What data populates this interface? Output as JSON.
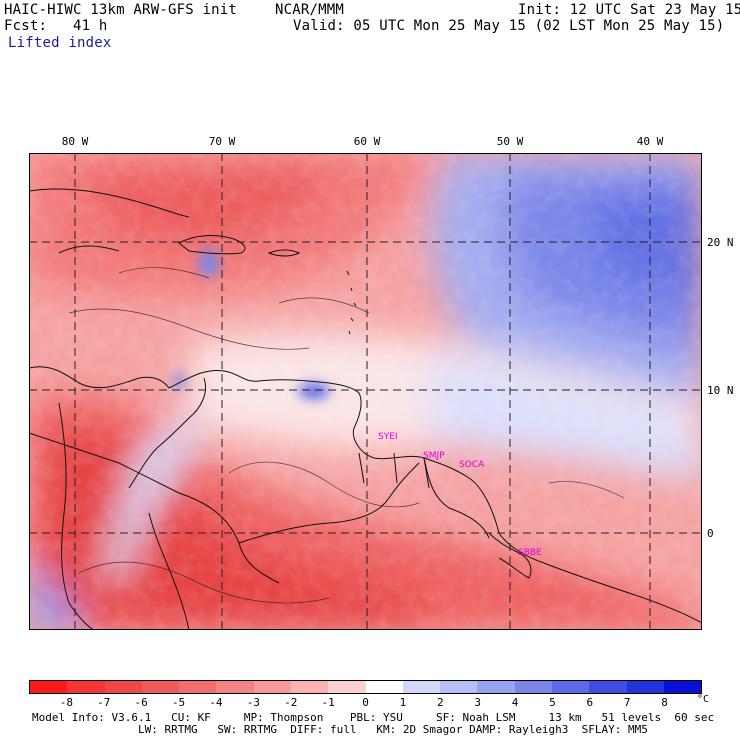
{
  "header": {
    "model_title": "HAIC-HIWC 13km ARW-GFS init",
    "org": "NCAR/MMM",
    "init": "Init: 12 UTC Sat 23 May 15",
    "fcst": "Fcst:   41 h",
    "valid": "Valid: 05 UTC Mon 25 May 15 (02 LST Mon 25 May 15)",
    "field": "Lifted index"
  },
  "map": {
    "longitude_labels": [
      "80 W",
      "70 W",
      "60 W",
      "50 W",
      "40 W"
    ],
    "latitude_labels": [
      "20 N",
      "10 N",
      "0"
    ],
    "stations": [
      "SYEI",
      "SMJP",
      "SOCA",
      "SBBE"
    ]
  },
  "colorbar": {
    "tick_labels": [
      "-8",
      "-7",
      "-6",
      "-5",
      "-4",
      "-3",
      "-2",
      "-1",
      "0",
      "1",
      "2",
      "3",
      "4",
      "5",
      "6",
      "7",
      "8"
    ],
    "unit": "°C",
    "colors": [
      "#ff1a1a",
      "#f53535",
      "#f04848",
      "#ef5b5b",
      "#f06e6e",
      "#f48383",
      "#f79a9a",
      "#fab3b3",
      "#fdd0d0",
      "#ffffff",
      "#d3d8fa",
      "#b6bff5",
      "#98a3f0",
      "#7a86ea",
      "#5d6be6",
      "#3f4ee0",
      "#2433dc",
      "#0a10d8"
    ]
  },
  "model_info": {
    "line1": "Model Info: V3.6.1   CU: KF     MP: Thompson    PBL: YSU     SF: Noah LSM     13 km   51 levels  60 sec",
    "line2": "                LW: RRTMG   SW: RRTMG  DIFF: full   KM: 2D Smagor DAMP: Rayleigh3  SFLAY: MM5"
  }
}
